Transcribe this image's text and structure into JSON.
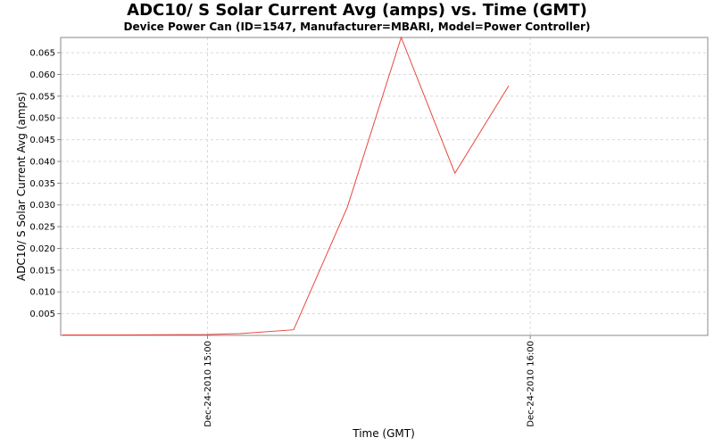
{
  "chart_data": {
    "type": "line",
    "title": "ADC10/ S Solar Current Avg (amps) vs. Time (GMT)",
    "subtitle": "Device Power Can (ID=1547, Manufacturer=MBARI, Model=Power Controller)",
    "xlabel": "Time (GMT)",
    "ylabel": "ADC10/ S Solar Current Avg (amps)",
    "x_tick_labels": [
      "Dec-24-2010 15:00",
      "Dec-24-2010 16:00"
    ],
    "y_ticks": [
      0.005,
      0.01,
      0.015,
      0.02,
      0.025,
      0.03,
      0.035,
      0.04,
      0.045,
      0.05,
      0.055,
      0.06,
      0.065
    ],
    "y_tick_labels": [
      "0.005",
      "0.010",
      "0.015",
      "0.020",
      "0.025",
      "0.030",
      "0.035",
      "0.040",
      "0.045",
      "0.050",
      "0.055",
      "0.060",
      "0.065"
    ],
    "ylim": [
      0.0,
      0.0685
    ],
    "xlim_minutes_from_15h": [
      -27.3,
      93.0
    ],
    "grid": true,
    "series": [
      {
        "color": "#e8473f",
        "points": [
          {
            "time": "Dec-24-2010 14:33",
            "value": 0.0001
          },
          {
            "time": "Dec-24-2010 14:43",
            "value": 0.0001
          },
          {
            "time": "Dec-24-2010 15:00",
            "value": 0.0002
          },
          {
            "time": "Dec-24-2010 15:06",
            "value": 0.0004
          },
          {
            "time": "Dec-24-2010 15:16",
            "value": 0.0013
          },
          {
            "time": "Dec-24-2010 15:26",
            "value": 0.0295
          },
          {
            "time": "Dec-24-2010 15:36",
            "value": 0.0685
          },
          {
            "time": "Dec-24-2010 15:46",
            "value": 0.0373
          },
          {
            "time": "Dec-24-2010 15:56",
            "value": 0.0574
          }
        ]
      }
    ]
  }
}
